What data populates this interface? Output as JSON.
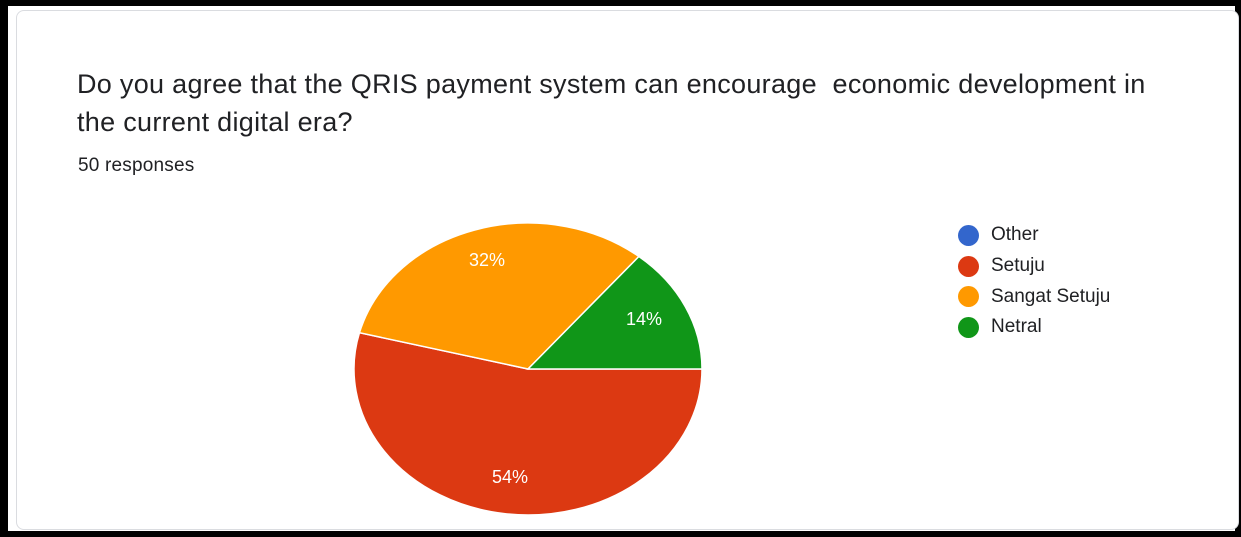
{
  "form": {
    "question": "Do you agree that the QRIS payment system can encourage  economic development in the current digital era?",
    "responses": "50 responses"
  },
  "chart_data": {
    "type": "pie",
    "title": "Do you agree that the QRIS payment system can encourage  economic development in the current digital era?",
    "total_responses": 50,
    "slices": [
      {
        "name": "Other",
        "value": 0,
        "label": "",
        "color": "#3366cc"
      },
      {
        "name": "Setuju",
        "value": 54,
        "label": "54%",
        "color": "#dc3912"
      },
      {
        "name": "Sangat Setuju",
        "value": 32,
        "label": "32%",
        "color": "#ff9900"
      },
      {
        "name": "Netral",
        "value": 14,
        "label": "14%",
        "color": "#109618"
      }
    ],
    "legend_position": "right"
  }
}
